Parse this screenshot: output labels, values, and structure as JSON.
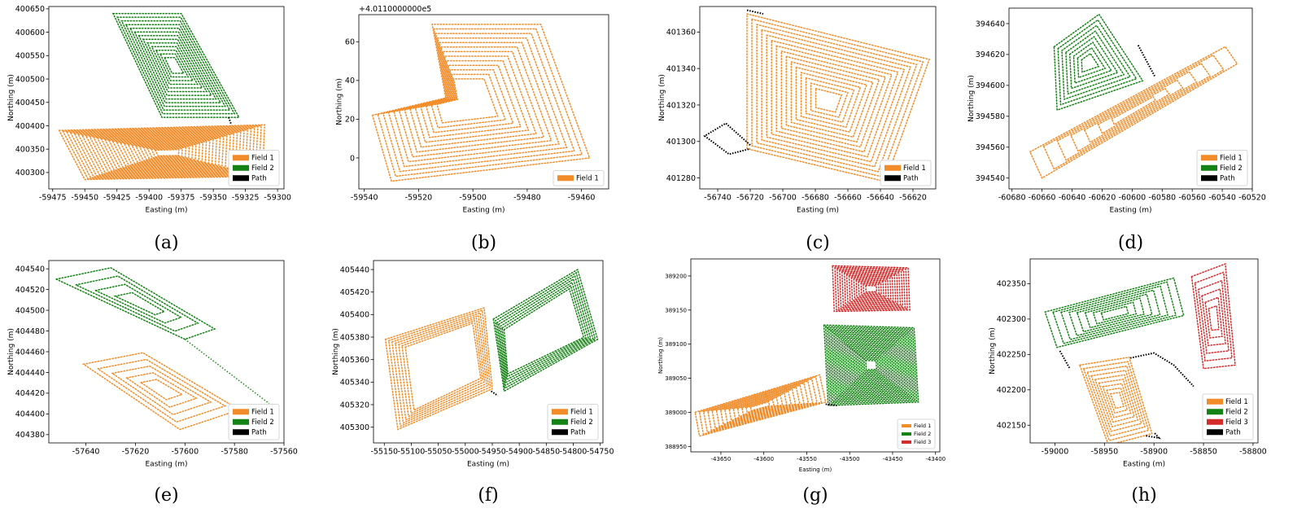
{
  "colors": {
    "field1": "#f28c28",
    "field2": "#148214",
    "field3": "#d42b2b",
    "path": "#000000"
  },
  "chart_data": [
    {
      "id": "a",
      "caption": "(a)",
      "type": "scatter",
      "offset": "",
      "xlabel": "Easting (m)",
      "ylabel": "Northing (m)",
      "xlim": [
        -59478,
        -59295
      ],
      "ylim": [
        400265,
        400655
      ],
      "xticks": [
        -59475,
        -59450,
        -59425,
        -59400,
        -59375,
        -59350,
        -59325,
        -59300
      ],
      "yticks": [
        400300,
        400350,
        400400,
        400450,
        400500,
        400550,
        400600,
        400650
      ],
      "legend": [
        "Field 1",
        "Field 2",
        "Path"
      ],
      "legend_loc": "lower right",
      "fields": [
        {
          "name": "Field 1",
          "kind": "rect",
          "corners": [
            [
              -59470,
              400390
            ],
            [
              -59310,
              400402
            ],
            [
              -59312,
              400292
            ],
            [
              -59450,
              400285
            ]
          ],
          "passes": 26
        },
        {
          "name": "Field 2",
          "kind": "rect",
          "corners": [
            [
              -59428,
              400640
            ],
            [
              -59375,
              400640
            ],
            [
              -59330,
              400418
            ],
            [
              -59390,
              400418
            ]
          ],
          "passes": 13
        }
      ],
      "path": [
        [
          -59338,
          400418
        ],
        [
          -59336,
          400402
        ]
      ]
    },
    {
      "id": "b",
      "caption": "(b)",
      "type": "scatter",
      "offset": "+4.0110000000e5",
      "xlabel": "Easting (m)",
      "ylabel": "Northing (m)",
      "xlim": [
        -59542,
        -59450
      ],
      "ylim": [
        -16,
        74
      ],
      "xticks": [
        -59540,
        -59520,
        -59500,
        -59480,
        -59460
      ],
      "yticks": [
        0,
        20,
        40,
        60
      ],
      "legend": [
        "Field 1"
      ],
      "legend_loc": "lower right",
      "fields": [
        {
          "name": "Field 1",
          "kind": "lshape",
          "corners": [
            [
              -59537,
              22
            ],
            [
              -59510,
              31
            ],
            [
              -59515,
              69
            ],
            [
              -59475,
              69
            ],
            [
              -59457,
              0
            ],
            [
              -59530,
              -12
            ]
          ],
          "passes": 13
        }
      ],
      "path": []
    },
    {
      "id": "c",
      "caption": "(c)",
      "type": "scatter",
      "offset": "",
      "xlabel": "Easting (m)",
      "ylabel": "Northing (m)",
      "xlim": [
        -56751,
        -56606
      ],
      "ylim": [
        401274,
        401374
      ],
      "xticks": [
        -56740,
        -56720,
        -56700,
        -56680,
        -56660,
        -56640,
        -56620
      ],
      "yticks": [
        401280,
        401300,
        401320,
        401340,
        401360
      ],
      "legend": [
        "Field 1",
        "Path"
      ],
      "legend_loc": "lower right",
      "fields": [
        {
          "name": "Field 1",
          "kind": "rect",
          "corners": [
            [
              -56722,
              401370
            ],
            [
              -56610,
              401345
            ],
            [
              -56637,
              401278
            ],
            [
              -56722,
              401296
            ]
          ],
          "passes": 15
        }
      ],
      "path": [
        [
          -56722,
          401372
        ],
        [
          -56712,
          401370
        ]
      ],
      "path2": [
        [
          -56720,
          401298
        ],
        [
          -56735,
          401310
        ],
        [
          -56748,
          401303
        ],
        [
          -56733,
          401293
        ],
        [
          -56720,
          401296
        ]
      ]
    },
    {
      "id": "d",
      "caption": "(d)",
      "type": "scatter",
      "offset": "",
      "xlabel": "Easting (m)",
      "ylabel": "Northing (m)",
      "xlim": [
        -60682,
        -60520
      ],
      "ylim": [
        394533,
        394650
      ],
      "xticks": [
        -60680,
        -60660,
        -60640,
        -60620,
        -60600,
        -60580,
        -60560,
        -60540,
        -60520
      ],
      "yticks": [
        394540,
        394560,
        394580,
        394600,
        394620,
        394640
      ],
      "legend": [
        "Field 1",
        "Field 2",
        "Path"
      ],
      "legend_loc": "lower right",
      "fields": [
        {
          "name": "Field 1",
          "kind": "rect",
          "corners": [
            [
              -60668,
              394557
            ],
            [
              -60538,
              394625
            ],
            [
              -60530,
              394614
            ],
            [
              -60660,
              394540
            ]
          ],
          "passes": 7
        },
        {
          "name": "Field 2",
          "kind": "rect",
          "corners": [
            [
              -60652,
              394625
            ],
            [
              -60622,
              394646
            ],
            [
              -60593,
              394603
            ],
            [
              -60650,
              394584
            ]
          ],
          "passes": 8
        }
      ],
      "path": [
        [
          -60596,
          394626
        ],
        [
          -60585,
          394606
        ]
      ]
    },
    {
      "id": "e",
      "caption": "(e)",
      "type": "scatter",
      "offset": "",
      "xlabel": "Easting (m)",
      "ylabel": "Northing (m)",
      "xlim": [
        -57655,
        -57560
      ],
      "ylim": [
        404372,
        404548
      ],
      "xticks": [
        -57640,
        -57620,
        -57600,
        -57580,
        -57560
      ],
      "yticks": [
        404380,
        404400,
        404420,
        404440,
        404460,
        404480,
        404500,
        404520,
        404540
      ],
      "legend": [
        "Field 1",
        "Field 2",
        "Path"
      ],
      "legend_loc": "lower right",
      "fields": [
        {
          "name": "Field 1",
          "kind": "rect",
          "corners": [
            [
              -57641,
              404448
            ],
            [
              -57617,
              404459
            ],
            [
              -57578,
              404404
            ],
            [
              -57602,
              404385
            ]
          ],
          "passes": 5
        },
        {
          "name": "Field 2",
          "kind": "rect",
          "corners": [
            [
              -57652,
              404530
            ],
            [
              -57630,
              404541
            ],
            [
              -57588,
              404482
            ],
            [
              -57600,
              404472
            ]
          ],
          "passes": 4
        }
      ],
      "path": [],
      "tail": [
        [
          -57600,
          404472
        ],
        [
          -57566,
          404410
        ]
      ]
    },
    {
      "id": "f",
      "caption": "(f)",
      "type": "scatter",
      "offset": "",
      "xlabel": "Easting (m)",
      "ylabel": "Northing (m)",
      "xlim": [
        -55170,
        -54745
      ],
      "ylim": [
        405286,
        405448
      ],
      "xticks": [
        -55150,
        -55100,
        -55050,
        -55000,
        -54950,
        -54900,
        -54850,
        -54800,
        -54750
      ],
      "yticks": [
        405300,
        405320,
        405340,
        405360,
        405380,
        405400,
        405420,
        405440
      ],
      "legend": [
        "Field 1",
        "Field 2",
        "Path"
      ],
      "legend_loc": "lower right",
      "fields": [
        {
          "name": "Field 1",
          "kind": "frame",
          "corners": [
            [
              -55148,
              405378
            ],
            [
              -54965,
              405406
            ],
            [
              -54950,
              405334
            ],
            [
              -55125,
              405298
            ]
          ],
          "inner": [
            [
              -55105,
              405370
            ],
            [
              -54990,
              405390
            ],
            [
              -54975,
              405345
            ],
            [
              -55090,
              405318
            ]
          ],
          "passes": 7
        },
        {
          "name": "Field 2",
          "kind": "frame",
          "corners": [
            [
              -54948,
              405396
            ],
            [
              -54792,
              405440
            ],
            [
              -54755,
              405378
            ],
            [
              -54928,
              405332
            ]
          ],
          "inner": [
            [
              -54925,
              405385
            ],
            [
              -54810,
              405420
            ],
            [
              -54785,
              405380
            ],
            [
              -54920,
              405350
            ]
          ],
          "passes": 7
        }
      ],
      "path": [
        [
          -54952,
          405332
        ],
        [
          -54940,
          405328
        ]
      ]
    },
    {
      "id": "g",
      "caption": "(g)",
      "type": "scatter",
      "offset": "",
      "xlabel": "Easting (m)",
      "ylabel": "Northing (m)",
      "xlim": [
        -43685,
        -43395
      ],
      "ylim": [
        388942,
        389225
      ],
      "xticks": [
        -43650,
        -43600,
        -43550,
        -43500,
        -43450,
        -43400
      ],
      "yticks": [
        388950,
        389000,
        389050,
        389100,
        389150,
        389200
      ],
      "legend": [
        "Field 1",
        "Field 2",
        "Field 3"
      ],
      "legend_loc": "lower right",
      "fields": [
        {
          "name": "Field 1",
          "kind": "rect",
          "corners": [
            [
              -43680,
              389000
            ],
            [
              -43535,
              389055
            ],
            [
              -43528,
              389015
            ],
            [
              -43675,
              388965
            ]
          ],
          "passes": 14
        },
        {
          "name": "Field 2",
          "kind": "rect",
          "corners": [
            [
              -43530,
              389128
            ],
            [
              -43425,
              389124
            ],
            [
              -43420,
              389015
            ],
            [
              -43525,
              389010
            ]
          ],
          "passes": 26
        },
        {
          "name": "Field 3",
          "kind": "rect",
          "corners": [
            [
              -43520,
              389215
            ],
            [
              -43432,
              389212
            ],
            [
              -43430,
              389150
            ],
            [
              -43518,
              389148
            ]
          ],
          "passes": 15
        }
      ],
      "path": [
        [
          -43528,
          389012
        ],
        [
          -43515,
          389010
        ]
      ]
    },
    {
      "id": "h",
      "caption": "(h)",
      "type": "scatter",
      "offset": "",
      "xlabel": "Easting (m)",
      "ylabel": "Northing (m)",
      "xlim": [
        -59025,
        -58795
      ],
      "ylim": [
        402125,
        402385
      ],
      "xticks": [
        -59000,
        -58950,
        -58900,
        -58850,
        -58800
      ],
      "yticks": [
        402150,
        402200,
        402250,
        402300,
        402350
      ],
      "legend": [
        "Field 1",
        "Field 2",
        "Field 3",
        "Path"
      ],
      "legend_loc": "lower right",
      "fields": [
        {
          "name": "Field 1",
          "kind": "rect",
          "corners": [
            [
              -58975,
              402235
            ],
            [
              -58925,
              402246
            ],
            [
              -58902,
              402138
            ],
            [
              -58946,
              402122
            ]
          ],
          "passes": 9
        },
        {
          "name": "Field 2",
          "kind": "rect",
          "corners": [
            [
              -59010,
              402310
            ],
            [
              -58880,
              402358
            ],
            [
              -58870,
              402305
            ],
            [
              -58998,
              402260
            ]
          ],
          "passes": 8
        },
        {
          "name": "Field 3",
          "kind": "rect",
          "corners": [
            [
              -58862,
              402360
            ],
            [
              -58828,
              402378
            ],
            [
              -58818,
              402235
            ],
            [
              -58850,
              402230
            ]
          ],
          "passes": 6
        }
      ],
      "path": [
        [
          -58924,
          402245
        ],
        [
          -58900,
          402252
        ],
        [
          -58880,
          402235
        ],
        [
          -58860,
          402205
        ]
      ],
      "path2": [
        [
          -58995,
          402255
        ],
        [
          -58985,
          402230
        ]
      ],
      "path3": [
        [
          -58908,
          402135
        ],
        [
          -58895,
          402132
        ],
        [
          -58900,
          402140
        ]
      ]
    }
  ]
}
